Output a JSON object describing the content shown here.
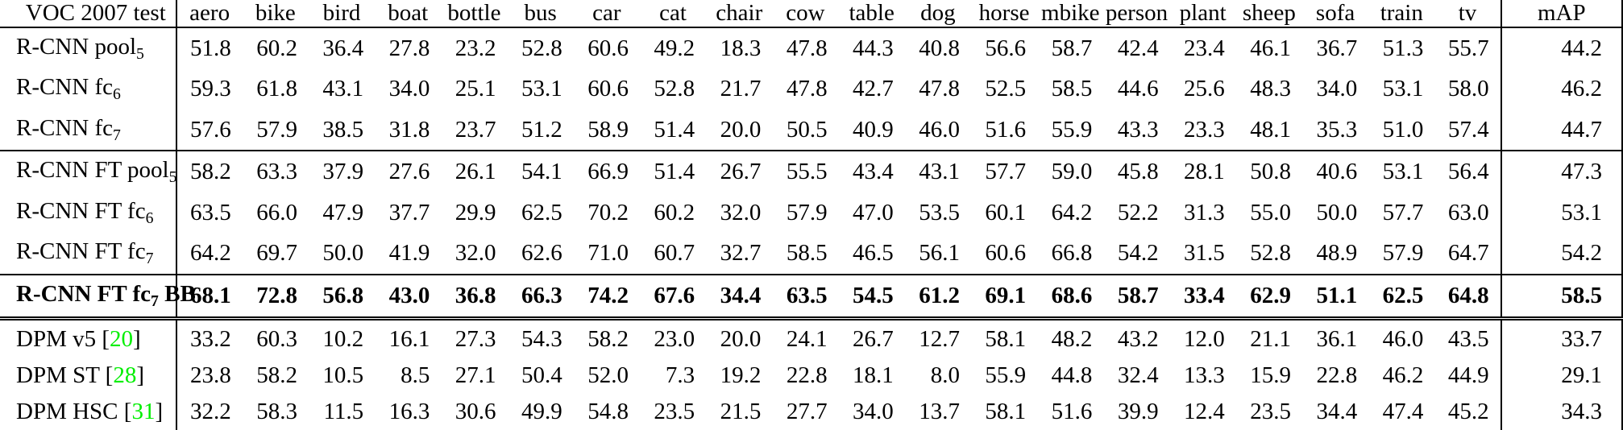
{
  "table": {
    "citation_color": "#00ee00",
    "header": {
      "label": "VOC 2007 test",
      "columns": [
        "aero",
        "bike",
        "bird",
        "boat",
        "bottle",
        "bus",
        "car",
        "cat",
        "chair",
        "cow",
        "table",
        "dog",
        "horse",
        "mbike",
        "person",
        "plant",
        "sheep",
        "sofa",
        "train",
        "tv"
      ],
      "map_label": "mAP"
    },
    "rows": [
      {
        "label": [
          {
            "t": "R-CNN pool"
          },
          {
            "t": "5",
            "style": "sub"
          }
        ],
        "values": [
          "51.8",
          "60.2",
          "36.4",
          "27.8",
          "23.2",
          "52.8",
          "60.6",
          "49.2",
          "18.3",
          "47.8",
          "44.3",
          "40.8",
          "56.6",
          "58.7",
          "42.4",
          "23.4",
          "46.1",
          "36.7",
          "51.3",
          "55.7"
        ],
        "map": "44.2",
        "bold": false,
        "rule_below": "none"
      },
      {
        "label": [
          {
            "t": "R-CNN fc"
          },
          {
            "t": "6",
            "style": "sub"
          }
        ],
        "values": [
          "59.3",
          "61.8",
          "43.1",
          "34.0",
          "25.1",
          "53.1",
          "60.6",
          "52.8",
          "21.7",
          "47.8",
          "42.7",
          "47.8",
          "52.5",
          "58.5",
          "44.6",
          "25.6",
          "48.3",
          "34.0",
          "53.1",
          "58.0"
        ],
        "map": "46.2",
        "bold": false,
        "rule_below": "none"
      },
      {
        "label": [
          {
            "t": "R-CNN fc"
          },
          {
            "t": "7",
            "style": "sub"
          }
        ],
        "values": [
          "57.6",
          "57.9",
          "38.5",
          "31.8",
          "23.7",
          "51.2",
          "58.9",
          "51.4",
          "20.0",
          "50.5",
          "40.9",
          "46.0",
          "51.6",
          "55.9",
          "43.3",
          "23.3",
          "48.1",
          "35.3",
          "51.0",
          "57.4"
        ],
        "map": "44.7",
        "bold": false,
        "rule_below": "single"
      },
      {
        "label": [
          {
            "t": "R-CNN FT pool"
          },
          {
            "t": "5",
            "style": "sub"
          }
        ],
        "values": [
          "58.2",
          "63.3",
          "37.9",
          "27.6",
          "26.1",
          "54.1",
          "66.9",
          "51.4",
          "26.7",
          "55.5",
          "43.4",
          "43.1",
          "57.7",
          "59.0",
          "45.8",
          "28.1",
          "50.8",
          "40.6",
          "53.1",
          "56.4"
        ],
        "map": "47.3",
        "bold": false,
        "rule_below": "none"
      },
      {
        "label": [
          {
            "t": "R-CNN FT fc"
          },
          {
            "t": "6",
            "style": "sub"
          }
        ],
        "values": [
          "63.5",
          "66.0",
          "47.9",
          "37.7",
          "29.9",
          "62.5",
          "70.2",
          "60.2",
          "32.0",
          "57.9",
          "47.0",
          "53.5",
          "60.1",
          "64.2",
          "52.2",
          "31.3",
          "55.0",
          "50.0",
          "57.7",
          "63.0"
        ],
        "map": "53.1",
        "bold": false,
        "rule_below": "none"
      },
      {
        "label": [
          {
            "t": "R-CNN FT fc"
          },
          {
            "t": "7",
            "style": "sub"
          }
        ],
        "values": [
          "64.2",
          "69.7",
          "50.0",
          "41.9",
          "32.0",
          "62.6",
          "71.0",
          "60.7",
          "32.7",
          "58.5",
          "46.5",
          "56.1",
          "60.6",
          "66.8",
          "54.2",
          "31.5",
          "52.8",
          "48.9",
          "57.9",
          "64.7"
        ],
        "map": "54.2",
        "bold": false,
        "rule_below": "single"
      },
      {
        "label": [
          {
            "t": "R-CNN FT fc"
          },
          {
            "t": "7",
            "style": "sub"
          },
          {
            "t": " BB"
          }
        ],
        "values": [
          "68.1",
          "72.8",
          "56.8",
          "43.0",
          "36.8",
          "66.3",
          "74.2",
          "67.6",
          "34.4",
          "63.5",
          "54.5",
          "61.2",
          "69.1",
          "68.6",
          "58.7",
          "33.4",
          "62.9",
          "51.1",
          "62.5",
          "64.8"
        ],
        "map": "58.5",
        "bold": true,
        "rule_below": "double"
      },
      {
        "label": [
          {
            "t": "DPM v5 ["
          },
          {
            "t": "20",
            "style": "cite"
          },
          {
            "t": "]"
          }
        ],
        "values": [
          "33.2",
          "60.3",
          "10.2",
          "16.1",
          "27.3",
          "54.3",
          "58.2",
          "23.0",
          "20.0",
          "24.1",
          "26.7",
          "12.7",
          "58.1",
          "48.2",
          "43.2",
          "12.0",
          "21.1",
          "36.1",
          "46.0",
          "43.5"
        ],
        "map": "33.7",
        "bold": false,
        "rule_below": "none"
      },
      {
        "label": [
          {
            "t": "DPM ST ["
          },
          {
            "t": "28",
            "style": "cite"
          },
          {
            "t": "]"
          }
        ],
        "values": [
          "23.8",
          "58.2",
          "10.5",
          "8.5",
          "27.1",
          "50.4",
          "52.0",
          "7.3",
          "19.2",
          "22.8",
          "18.1",
          "8.0",
          "55.9",
          "44.8",
          "32.4",
          "13.3",
          "15.9",
          "22.8",
          "46.2",
          "44.9"
        ],
        "map": "29.1",
        "bold": false,
        "rule_below": "none"
      },
      {
        "label": [
          {
            "t": "DPM HSC ["
          },
          {
            "t": "31",
            "style": "cite"
          },
          {
            "t": "]"
          }
        ],
        "values": [
          "32.2",
          "58.3",
          "11.5",
          "16.3",
          "30.6",
          "49.9",
          "54.8",
          "23.5",
          "21.5",
          "27.7",
          "34.0",
          "13.7",
          "58.1",
          "51.6",
          "39.9",
          "12.4",
          "23.5",
          "34.4",
          "47.4",
          "45.2"
        ],
        "map": "34.3",
        "bold": false,
        "rule_below": "none"
      }
    ]
  }
}
